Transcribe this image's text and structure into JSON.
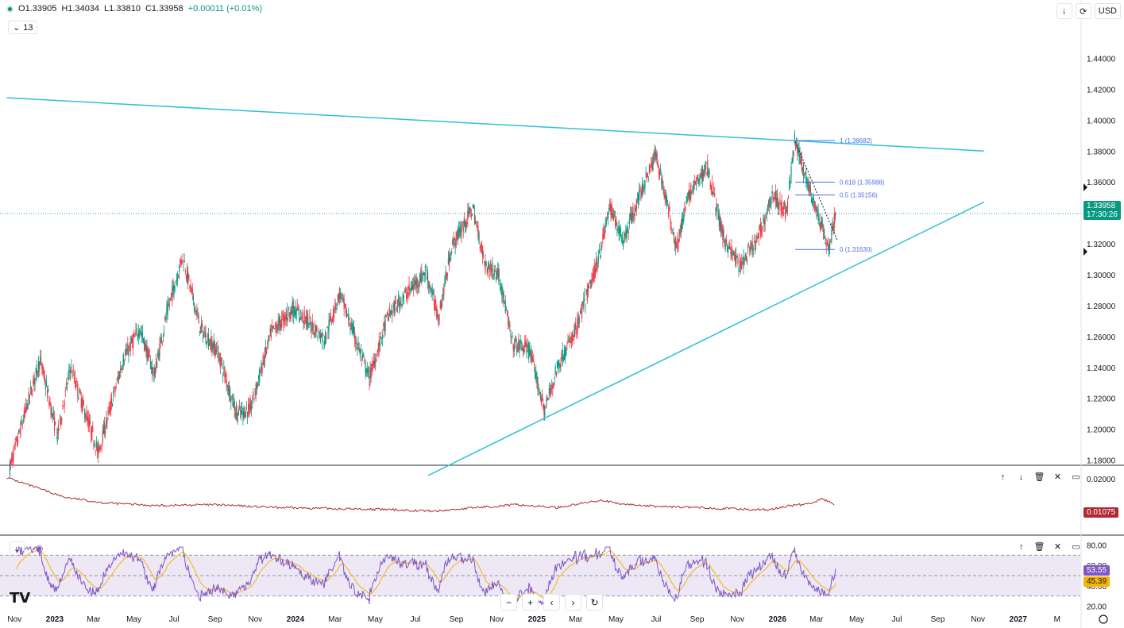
{
  "ohlc": {
    "open_label": "O",
    "open": "1.33905",
    "high_label": "H",
    "high": "1.34034",
    "low_label": "L",
    "low": "1.33810",
    "close_label": "C",
    "close": "1.33958",
    "change": "+0.00011 (+0.01%)"
  },
  "indicator_count": "13",
  "currency": "USD",
  "price_tag": {
    "value": "1.33958",
    "countdown": "17:30:26"
  },
  "atr_tag": "0.01075",
  "rsi_tags": {
    "rsi": "53.55",
    "ma": "45.39"
  },
  "colors": {
    "up": "#089981",
    "down": "#f23645",
    "trend": "#2ec1d4",
    "fib": "#4a6ff0",
    "atr": "#b22833",
    "rsi": "#7e57c2",
    "rsi_ma": "#f5b400",
    "rsi_band": "#ede7f6"
  },
  "icons": [
    "down-arrow-icon",
    "refresh-icon",
    "up-icon",
    "down-icon",
    "trash-icon",
    "collapse-icon",
    "maximize-icon",
    "chevron-down-icon",
    "reset-icon",
    "settings-icon"
  ],
  "chart_data": {
    "type": "candlestick",
    "symbol_quote": "USD",
    "price_axis": {
      "ylim": [
        1.17,
        1.45
      ],
      "ticks": [
        "1.44000",
        "1.42000",
        "1.40000",
        "1.38000",
        "1.36000",
        "1.34000",
        "1.32000",
        "1.30000",
        "1.28000",
        "1.26000",
        "1.24000",
        "1.22000",
        "1.20000",
        "1.18000"
      ]
    },
    "time_axis": {
      "ticks": [
        "Nov",
        "2023",
        "Mar",
        "May",
        "Jul",
        "Sep",
        "Nov",
        "2024",
        "Mar",
        "May",
        "Jul",
        "Sep",
        "Nov",
        "2025",
        "Mar",
        "May",
        "Jul",
        "Sep",
        "Nov",
        "2026",
        "Mar",
        "May",
        "Jul",
        "Sep",
        "Nov",
        "2027",
        "M"
      ]
    },
    "price_path": [
      [
        "2022-10-25",
        1.175
      ],
      [
        "2022-11-20",
        1.215
      ],
      [
        "2022-12-10",
        1.245
      ],
      [
        "2023-01-05",
        1.195
      ],
      [
        "2023-01-25",
        1.24
      ],
      [
        "2023-03-08",
        1.185
      ],
      [
        "2023-04-15",
        1.245
      ],
      [
        "2023-05-10",
        1.265
      ],
      [
        "2023-06-01",
        1.235
      ],
      [
        "2023-06-20",
        1.275
      ],
      [
        "2023-07-14",
        1.312
      ],
      [
        "2023-08-10",
        1.265
      ],
      [
        "2023-09-05",
        1.25
      ],
      [
        "2023-10-04",
        1.21
      ],
      [
        "2023-10-25",
        1.213
      ],
      [
        "2023-11-25",
        1.262
      ],
      [
        "2023-12-28",
        1.278
      ],
      [
        "2024-01-20",
        1.27
      ],
      [
        "2024-02-14",
        1.258
      ],
      [
        "2024-03-08",
        1.288
      ],
      [
        "2024-04-22",
        1.233
      ],
      [
        "2024-05-20",
        1.273
      ],
      [
        "2024-06-12",
        1.285
      ],
      [
        "2024-07-17",
        1.302
      ],
      [
        "2024-08-05",
        1.272
      ],
      [
        "2024-08-25",
        1.318
      ],
      [
        "2024-09-26",
        1.343
      ],
      [
        "2024-10-15",
        1.306
      ],
      [
        "2024-11-05",
        1.3
      ],
      [
        "2024-11-25",
        1.255
      ],
      [
        "2024-12-20",
        1.252
      ],
      [
        "2025-01-13",
        1.212
      ],
      [
        "2025-02-01",
        1.24
      ],
      [
        "2025-03-01",
        1.264
      ],
      [
        "2025-04-03",
        1.308
      ],
      [
        "2025-04-22",
        1.344
      ],
      [
        "2025-05-12",
        1.322
      ],
      [
        "2025-06-10",
        1.356
      ],
      [
        "2025-07-01",
        1.378
      ],
      [
        "2025-08-01",
        1.318
      ],
      [
        "2025-08-20",
        1.352
      ],
      [
        "2025-09-17",
        1.37
      ],
      [
        "2025-10-10",
        1.325
      ],
      [
        "2025-11-05",
        1.305
      ],
      [
        "2025-12-01",
        1.322
      ],
      [
        "2025-12-25",
        1.352
      ],
      [
        "2026-01-15",
        1.34
      ],
      [
        "2026-01-27",
        1.387
      ],
      [
        "2026-02-08",
        1.37
      ],
      [
        "2026-02-25",
        1.347
      ],
      [
        "2026-03-20",
        1.316
      ],
      [
        "2026-03-30",
        1.3396
      ]
    ],
    "current_price": 1.33958,
    "trendlines": [
      {
        "from": [
          "2022-10-20",
          1.4145
        ],
        "to": [
          "2026-11-10",
          1.38
        ]
      },
      {
        "from": [
          "2024-07-20",
          1.17
        ],
        "to": [
          "2026-11-10",
          1.347
        ]
      }
    ],
    "dotted_trendline": {
      "from": [
        "2026-01-28",
        1.386
      ],
      "to": [
        "2026-04-02",
        1.322
      ]
    },
    "fibonacci": [
      {
        "level": "1",
        "price": 1.38682,
        "label": "1 (1.38682)"
      },
      {
        "level": "0.618",
        "price": 1.35988,
        "label": "0.618 (1.35988)"
      },
      {
        "level": "0.5",
        "price": 1.35156,
        "label": "0.5 (1.35156)"
      },
      {
        "level": "0",
        "price": 1.3163,
        "label": "0 (1.31630)"
      }
    ],
    "atr_panel": {
      "ylim": [
        0.0,
        0.022
      ],
      "tick": "0.02000",
      "current": 0.01075,
      "path": [
        [
          "2022-10-20",
          0.0205
        ],
        [
          "2022-11-20",
          0.018
        ],
        [
          "2023-01-15",
          0.0135
        ],
        [
          "2023-03-15",
          0.0115
        ],
        [
          "2023-06-01",
          0.0105
        ],
        [
          "2023-09-01",
          0.0108
        ],
        [
          "2023-12-01",
          0.0098
        ],
        [
          "2024-03-01",
          0.0094
        ],
        [
          "2024-06-01",
          0.009
        ],
        [
          "2024-08-01",
          0.0085
        ],
        [
          "2024-10-01",
          0.0098
        ],
        [
          "2024-12-01",
          0.0108
        ],
        [
          "2025-02-01",
          0.0098
        ],
        [
          "2025-04-10",
          0.0125
        ],
        [
          "2025-05-01",
          0.0112
        ],
        [
          "2025-07-01",
          0.0102
        ],
        [
          "2025-09-01",
          0.0098
        ],
        [
          "2025-11-15",
          0.0092
        ],
        [
          "2025-12-20",
          0.009
        ],
        [
          "2026-01-20",
          0.0105
        ],
        [
          "2026-02-15",
          0.011
        ],
        [
          "2026-03-10",
          0.0128
        ],
        [
          "2026-03-30",
          0.01075
        ]
      ]
    },
    "rsi_panel": {
      "ylim": [
        15,
        85
      ],
      "ticks": [
        "80.00",
        "60.00",
        "40.00",
        "20.00"
      ],
      "band": [
        30,
        70
      ],
      "rsi": 53.55,
      "ma": 45.39
    }
  }
}
